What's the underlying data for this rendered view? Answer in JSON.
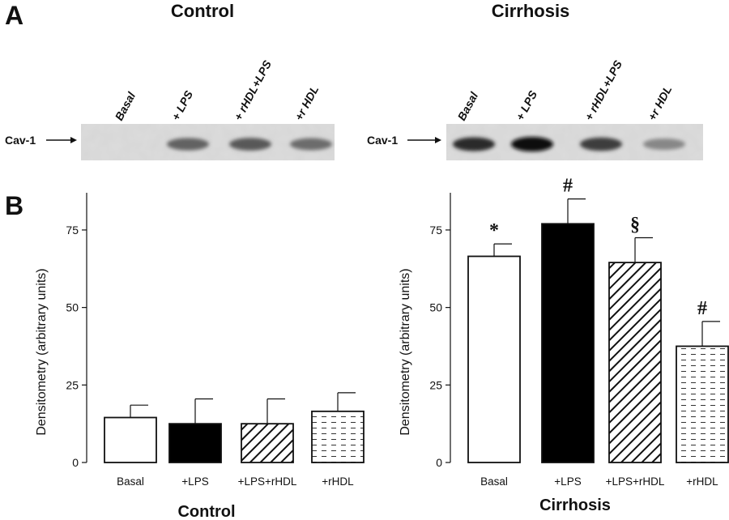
{
  "panels": {
    "a_letter": "A",
    "b_letter": "B"
  },
  "blot": {
    "row_label": "Cav-1",
    "groups": [
      {
        "title": "Control",
        "lanes": [
          "Basal",
          "+ LPS",
          "+ rHDL+LPS",
          "+r HDL"
        ],
        "band_intensity": [
          0.0,
          0.55,
          0.6,
          0.5
        ]
      },
      {
        "title": "Cirrhosis",
        "lanes": [
          "Basal",
          "+ LPS",
          "+ rHDL+LPS",
          "+r HDL"
        ],
        "band_intensity": [
          0.85,
          1.0,
          0.75,
          0.35
        ]
      }
    ]
  },
  "chart_data": [
    {
      "type": "bar",
      "xlabel": "Control",
      "ylabel": "Densitometry (arbitrary units)",
      "ylim": [
        0,
        87
      ],
      "yticks": [
        0,
        25,
        50,
        75
      ],
      "categories": [
        "Basal",
        "+LPS",
        "+LPS+rHDL",
        "+rHDL"
      ],
      "values": [
        14.5,
        12.5,
        12.5,
        16.5
      ],
      "errors": [
        4,
        8,
        8,
        6
      ],
      "fills": [
        "white",
        "black",
        "diagonal-hatch",
        "dashed-dots"
      ],
      "annotations": [
        "",
        "",
        "",
        ""
      ]
    },
    {
      "type": "bar",
      "xlabel": "Cirrhosis",
      "ylabel": "Densitometry (arbitrary units)",
      "ylim": [
        0,
        87
      ],
      "yticks": [
        0,
        25,
        50,
        75
      ],
      "categories": [
        "Basal",
        "+LPS",
        "+LPS+rHDL",
        "+rHDL"
      ],
      "values": [
        66.5,
        77,
        64.5,
        37.5
      ],
      "errors": [
        4,
        8,
        8,
        8
      ],
      "fills": [
        "white",
        "black",
        "diagonal-hatch",
        "dashed-dots"
      ],
      "annotations": [
        "*",
        "#",
        "§",
        "#"
      ]
    }
  ]
}
